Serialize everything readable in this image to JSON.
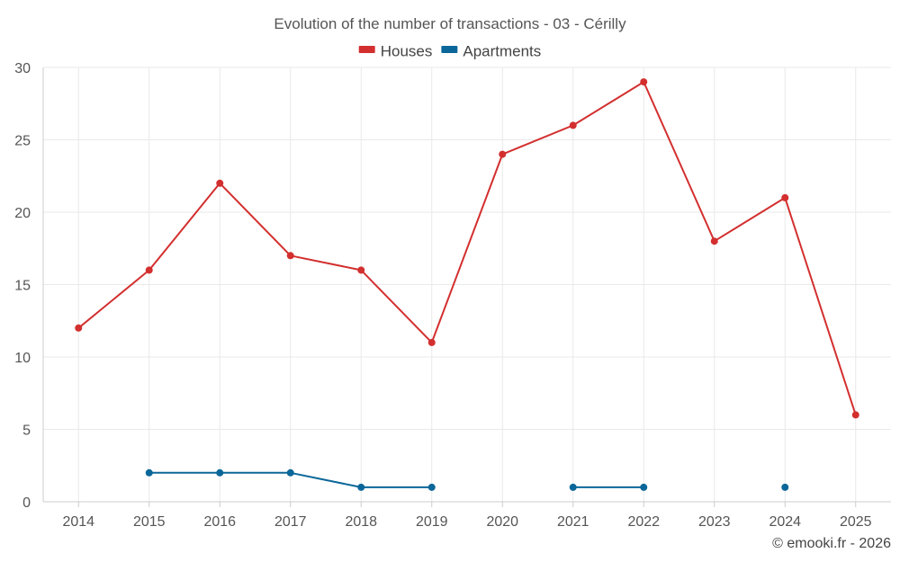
{
  "chart_data": {
    "type": "line",
    "title": "Evolution of the number of transactions - 03 - Cérilly",
    "categories": [
      "2014",
      "2015",
      "2016",
      "2017",
      "2018",
      "2019",
      "2020",
      "2021",
      "2022",
      "2023",
      "2024",
      "2025"
    ],
    "ylim": [
      0,
      30
    ],
    "yticks": [
      0,
      5,
      10,
      15,
      20,
      25,
      30
    ],
    "grid": true,
    "legend_position": "top-center",
    "series": [
      {
        "name": "Houses",
        "color": "#d32f2f",
        "values": [
          12,
          16,
          22,
          17,
          16,
          11,
          24,
          26,
          29,
          18,
          21,
          6
        ]
      },
      {
        "name": "Apartments",
        "color": "#0b6799",
        "values": [
          null,
          2,
          2,
          2,
          1,
          1,
          null,
          1,
          1,
          null,
          1,
          null
        ]
      }
    ]
  },
  "credit": "© emooki.fr - 2026"
}
